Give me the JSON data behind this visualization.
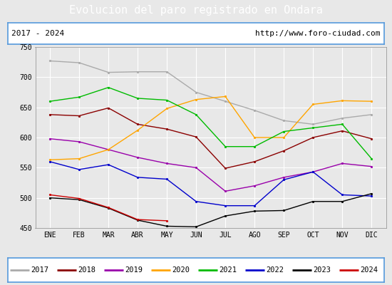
{
  "title": "Evolucion del paro registrado en Ondara",
  "subtitle_left": "2017 - 2024",
  "subtitle_right": "http://www.foro-ciudad.com",
  "months": [
    "ENE",
    "FEB",
    "MAR",
    "ABR",
    "MAY",
    "JUN",
    "JUL",
    "AGO",
    "SEP",
    "OCT",
    "NOV",
    "DIC"
  ],
  "ylim": [
    450,
    750
  ],
  "yticks": [
    450,
    500,
    550,
    600,
    650,
    700,
    750
  ],
  "series_order": [
    "2017",
    "2018",
    "2019",
    "2020",
    "2021",
    "2022",
    "2023",
    "2024"
  ],
  "colors": {
    "2017": "#aaaaaa",
    "2018": "#8b0000",
    "2019": "#9900aa",
    "2020": "#ffa500",
    "2021": "#00bb00",
    "2022": "#0000cc",
    "2023": "#000000",
    "2024": "#cc0000"
  },
  "series_data": {
    "2017": [
      727,
      724,
      708,
      709,
      709,
      675,
      660,
      645,
      628,
      622,
      632,
      638
    ],
    "2018": [
      638,
      636,
      649,
      622,
      614,
      601,
      549,
      560,
      578,
      600,
      611,
      598
    ],
    "2019": [
      598,
      593,
      580,
      567,
      557,
      550,
      511,
      520,
      534,
      543,
      557,
      552
    ],
    "2020": [
      563,
      565,
      580,
      612,
      648,
      663,
      668,
      600,
      600,
      655,
      661,
      660
    ],
    "2021": [
      660,
      667,
      683,
      665,
      662,
      638,
      585,
      585,
      610,
      616,
      622,
      565
    ],
    "2022": [
      560,
      547,
      555,
      534,
      531,
      494,
      487,
      487,
      530,
      543,
      505,
      503
    ],
    "2023": [
      500,
      497,
      483,
      463,
      453,
      452,
      470,
      478,
      479,
      494,
      494,
      507
    ],
    "2024": [
      505,
      499,
      484,
      464,
      462,
      null,
      null,
      null,
      null,
      null,
      null,
      null
    ]
  },
  "bg_color": "#e8e8e8",
  "plot_bg_color": "#e8e8e8",
  "title_bg_color": "#5599dd",
  "grid_color": "#ffffff",
  "border_color": "#5599dd"
}
